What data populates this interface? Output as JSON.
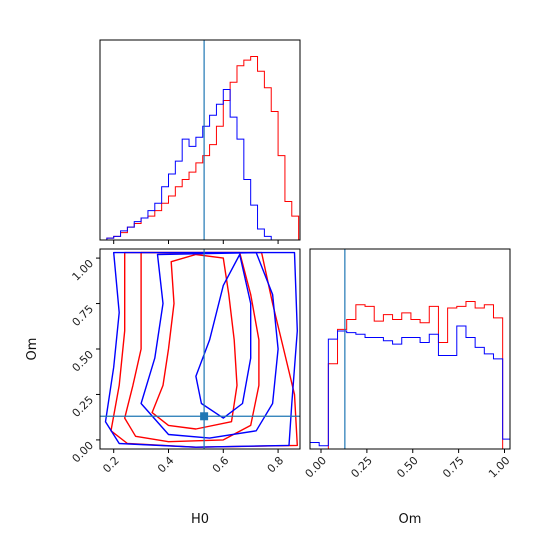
{
  "chart_data": [
    {
      "type": "histogram",
      "panel": "H0 marginal",
      "xlim": [
        0.15,
        0.88
      ],
      "x_edges": [
        0.15,
        0.175,
        0.2,
        0.225,
        0.25,
        0.275,
        0.3,
        0.325,
        0.35,
        0.375,
        0.4,
        0.425,
        0.45,
        0.475,
        0.5,
        0.525,
        0.55,
        0.575,
        0.6,
        0.625,
        0.65,
        0.675,
        0.7,
        0.725,
        0.75,
        0.775,
        0.8,
        0.825,
        0.85,
        0.875
      ],
      "truth": 0.53,
      "series": [
        {
          "color": "#ff0000",
          "values": [
            0.0,
            0.01,
            0.02,
            0.04,
            0.07,
            0.09,
            0.12,
            0.13,
            0.16,
            0.2,
            0.24,
            0.29,
            0.33,
            0.37,
            0.42,
            0.46,
            0.52,
            0.62,
            0.76,
            0.86,
            0.95,
            0.98,
            1.0,
            0.92,
            0.83,
            0.7,
            0.46,
            0.21,
            0.13
          ]
        },
        {
          "color": "#0000ff",
          "values": [
            0.0,
            0.01,
            0.02,
            0.05,
            0.07,
            0.1,
            0.12,
            0.16,
            0.2,
            0.29,
            0.36,
            0.43,
            0.55,
            0.51,
            0.56,
            0.62,
            0.68,
            0.74,
            0.82,
            0.67,
            0.55,
            0.33,
            0.19,
            0.06,
            0.02,
            0.0,
            0.0,
            0.0,
            0.0
          ]
        }
      ]
    },
    {
      "type": "contour",
      "panel": "H0 vs Om",
      "xlabel": "H0",
      "ylabel": "Om",
      "xlim": [
        0.15,
        0.88
      ],
      "ylim": [
        -0.05,
        1.05
      ],
      "xticks": [
        "0.2",
        "0.4",
        "0.6",
        "0.8"
      ],
      "yticks": [
        "0.00",
        "0.25",
        "0.50",
        "0.75",
        "1.00"
      ],
      "truth": [
        0.53,
        0.13
      ],
      "series": [
        {
          "color": "#ff0000",
          "contours": [
            [
              [
                0.34,
                0.15
              ],
              [
                0.38,
                0.3
              ],
              [
                0.4,
                0.5
              ],
              [
                0.42,
                0.75
              ],
              [
                0.41,
                0.98
              ],
              [
                0.5,
                1.02
              ],
              [
                0.6,
                1.0
              ],
              [
                0.62,
                0.8
              ],
              [
                0.64,
                0.55
              ],
              [
                0.65,
                0.3
              ],
              [
                0.63,
                0.1
              ],
              [
                0.5,
                0.06
              ],
              [
                0.4,
                0.08
              ],
              [
                0.34,
                0.15
              ]
            ],
            [
              [
                0.24,
                0.12
              ],
              [
                0.27,
                0.3
              ],
              [
                0.3,
                0.5
              ],
              [
                0.3,
                0.75
              ],
              [
                0.3,
                1.03
              ],
              [
                0.66,
                1.03
              ],
              [
                0.7,
                0.8
              ],
              [
                0.73,
                0.55
              ],
              [
                0.73,
                0.3
              ],
              [
                0.7,
                0.08
              ],
              [
                0.6,
                0.0
              ],
              [
                0.4,
                -0.01
              ],
              [
                0.28,
                0.02
              ],
              [
                0.24,
                0.12
              ]
            ],
            [
              [
                0.19,
                0.05
              ],
              [
                0.22,
                0.3
              ],
              [
                0.24,
                0.6
              ],
              [
                0.24,
                1.03
              ],
              [
                0.74,
                1.03
              ],
              [
                0.78,
                0.75
              ],
              [
                0.82,
                0.5
              ],
              [
                0.86,
                0.25
              ],
              [
                0.87,
                -0.03
              ],
              [
                0.5,
                -0.04
              ],
              [
                0.25,
                -0.02
              ],
              [
                0.19,
                0.05
              ]
            ]
          ]
        },
        {
          "color": "#0000ff",
          "contours": [
            [
              [
                0.5,
                0.35
              ],
              [
                0.55,
                0.55
              ],
              [
                0.6,
                0.85
              ],
              [
                0.66,
                1.02
              ],
              [
                0.7,
                0.75
              ],
              [
                0.7,
                0.45
              ],
              [
                0.67,
                0.2
              ],
              [
                0.6,
                0.12
              ],
              [
                0.52,
                0.2
              ],
              [
                0.5,
                0.35
              ]
            ],
            [
              [
                0.3,
                0.2
              ],
              [
                0.35,
                0.45
              ],
              [
                0.38,
                0.75
              ],
              [
                0.36,
                1.02
              ],
              [
                0.72,
                1.03
              ],
              [
                0.78,
                0.8
              ],
              [
                0.8,
                0.5
              ],
              [
                0.78,
                0.2
              ],
              [
                0.72,
                0.05
              ],
              [
                0.55,
                0.01
              ],
              [
                0.4,
                0.03
              ],
              [
                0.3,
                0.2
              ]
            ],
            [
              [
                0.17,
                0.1
              ],
              [
                0.2,
                0.4
              ],
              [
                0.22,
                0.7
              ],
              [
                0.2,
                1.03
              ],
              [
                0.86,
                1.03
              ],
              [
                0.87,
                0.6
              ],
              [
                0.85,
                0.2
              ],
              [
                0.84,
                -0.03
              ],
              [
                0.5,
                -0.04
              ],
              [
                0.22,
                -0.02
              ],
              [
                0.17,
                0.1
              ]
            ]
          ]
        }
      ]
    },
    {
      "type": "histogram",
      "panel": "Om marginal",
      "xlabel": "Om",
      "xlim": [
        -0.06,
        1.03
      ],
      "xticks": [
        "0.00",
        "0.25",
        "0.50",
        "0.75",
        "1.00"
      ],
      "x_edges": [
        -0.06,
        -0.01,
        0.04,
        0.09,
        0.14,
        0.19,
        0.24,
        0.29,
        0.34,
        0.39,
        0.44,
        0.49,
        0.54,
        0.59,
        0.64,
        0.69,
        0.74,
        0.79,
        0.84,
        0.89,
        0.94,
        0.99,
        1.03
      ],
      "truth": 0.13,
      "series": [
        {
          "color": "#ff0000",
          "values": [
            0.0,
            0.0,
            0.52,
            0.73,
            0.79,
            0.88,
            0.87,
            0.78,
            0.82,
            0.79,
            0.83,
            0.79,
            0.77,
            0.87,
            0.65,
            0.86,
            0.87,
            0.9,
            0.86,
            0.88,
            0.8,
            0.0
          ]
        },
        {
          "color": "#0000ff",
          "values": [
            0.04,
            0.02,
            0.67,
            0.72,
            0.71,
            0.7,
            0.68,
            0.68,
            0.66,
            0.64,
            0.68,
            0.68,
            0.65,
            0.7,
            0.57,
            0.57,
            0.75,
            0.68,
            0.62,
            0.58,
            0.55,
            0.06
          ]
        }
      ]
    }
  ]
}
